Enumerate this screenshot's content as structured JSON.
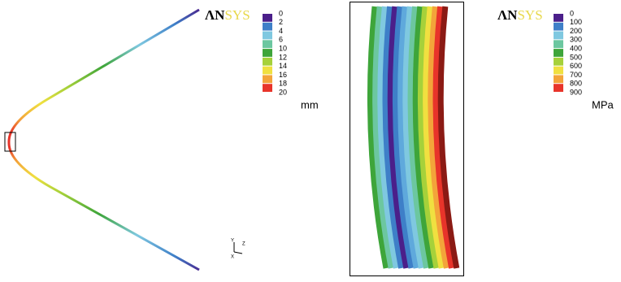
{
  "panels": [
    {
      "logo": {
        "left": "ΛN",
        "right": "SYS"
      },
      "legend": {
        "labels": [
          0,
          2,
          4,
          6,
          10,
          12,
          14,
          16,
          18,
          20
        ],
        "colors": [
          "#4b1f8a",
          "#3e7fc8",
          "#7fc8e0",
          "#6cc7a0",
          "#3ea53a",
          "#a6d13a",
          "#f0e040",
          "#f3a43a",
          "#e8342a"
        ]
      },
      "unit": "mm",
      "triad": [
        "Y",
        "Z",
        "X"
      ]
    },
    {
      "logo": {
        "left": "ΛN",
        "right": "SYS"
      },
      "legend": {
        "labels": [
          0,
          100,
          200,
          300,
          400,
          500,
          600,
          700,
          800,
          900
        ],
        "colors": [
          "#4b1f8a",
          "#3e7fc8",
          "#7fc8e0",
          "#6cc7a0",
          "#3ea53a",
          "#a6d13a",
          "#f0e040",
          "#f3a43a",
          "#e8342a"
        ]
      },
      "unit": "MPa"
    }
  ]
}
